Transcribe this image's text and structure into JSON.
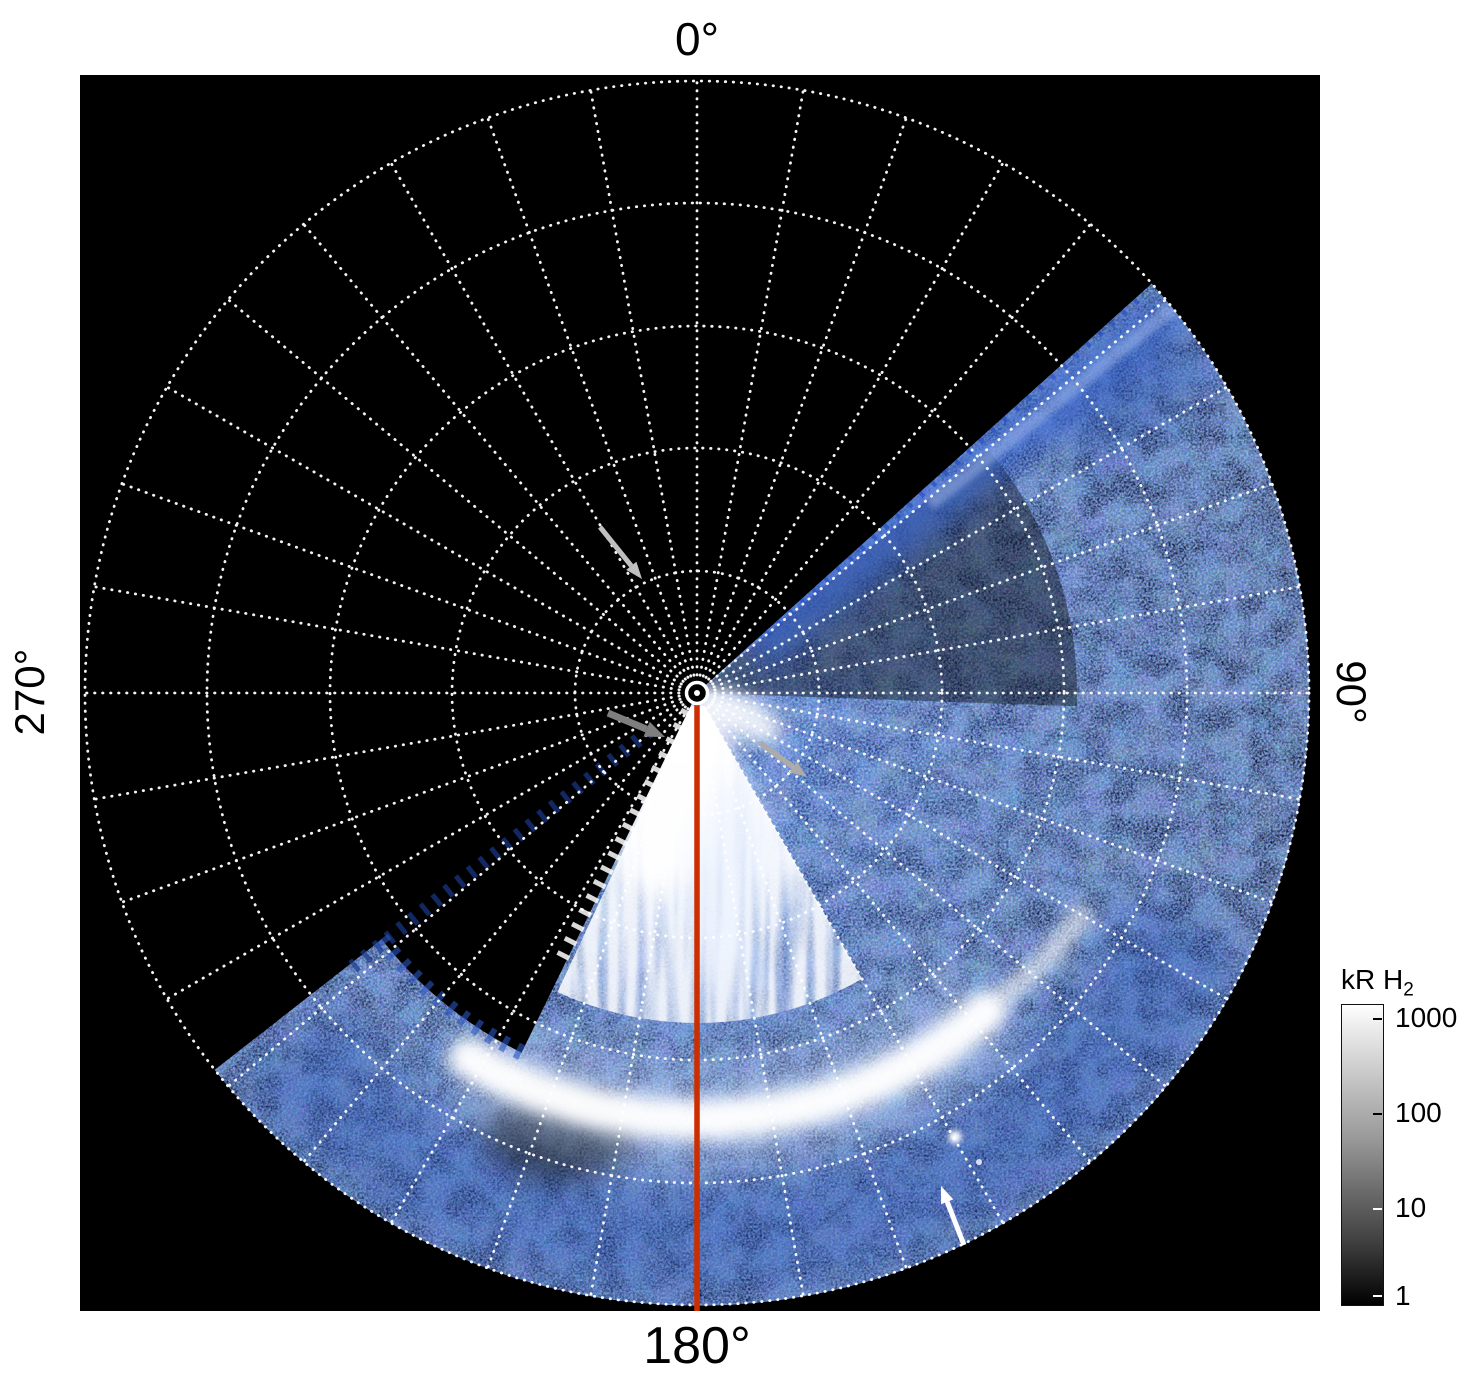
{
  "figure": {
    "page_background": "#ffffff",
    "plot_background": "#000000",
    "grid_color": "#ffffff",
    "meridian_color": "#cc2e00",
    "angle_labels": {
      "top": "0°",
      "right": "90°",
      "bottom": "180°",
      "left": "270°"
    }
  },
  "colorbar": {
    "title": "kR H",
    "title_sub": "2",
    "ticks": [
      "1000",
      "100",
      "10",
      "1"
    ],
    "scale": "log",
    "top_color": "#ffffff",
    "bottom_color": "#000000"
  },
  "annotations": {
    "arrows": [
      {
        "id": "arrow-upper-left",
        "color": "#c0c0c0",
        "direction": "down-right",
        "target": "second ring near 350° longitude"
      },
      {
        "id": "arrow-left-of-pole",
        "color": "#7f7f7f",
        "direction": "right",
        "target": "pole at start of 180° meridian"
      },
      {
        "id": "arrow-right-of-pole",
        "color": "#ababab",
        "direction": "down-right",
        "target": "bright polar emission southeast of pole"
      },
      {
        "id": "arrow-lower-right",
        "color": "#ffffff",
        "direction": "up-left",
        "target": "small bright spot near outer ring at ~150° longitude"
      }
    ]
  },
  "chart_data": {
    "type": "heatmap",
    "projection": "polar",
    "title": "",
    "units": "kR H2",
    "angle_tick_labels": [
      "0°",
      "90°",
      "180°",
      "270°"
    ],
    "angular_gridline_step_deg": 10,
    "radial_gridline_count": 5,
    "meridian_line_deg": 180,
    "colorbar": {
      "label": "kR H2",
      "scale": "log",
      "ticks": [
        1000,
        100,
        10,
        1
      ]
    },
    "grid": {
      "center": [
        617,
        618
      ],
      "ring_radii": [
        122,
        245,
        367,
        490,
        612
      ],
      "angular_step_deg": 10,
      "inner_radius": 18
    },
    "regions": [
      {
        "name": "no-data sector",
        "longitude_deg": [
          232,
          48
        ],
        "brightness_kR": null,
        "appearance": "black, unobserved (top-left of disk)"
      },
      {
        "name": "diffuse emission",
        "longitude_deg": [
          48,
          232
        ],
        "brightness_kR": "1-10",
        "appearance": "dark-blue speckle filling observed sector"
      },
      {
        "name": "main auroral arc",
        "longitude_deg": [
          135,
          215
        ],
        "radial_position": "between 3rd and 4th ring",
        "brightness_kR": "100-1000",
        "appearance": "bright white arc"
      },
      {
        "name": "polar streaks",
        "longitude_deg": [
          150,
          206
        ],
        "radial_position": "pole out to ~3rd ring",
        "brightness_kR": "100-1000",
        "appearance": "white radial streaks fanning from pole"
      },
      {
        "name": "northeast band",
        "longitude_deg": [
          46,
          56
        ],
        "radial_position": "pole to outer ring",
        "brightness_kR": "10-100",
        "appearance": "diagonal blue band toward upper right"
      },
      {
        "name": "inner dark wedge",
        "longitude_deg": [
          206,
          233
        ],
        "radial_position": "pole to ~2/3 of 4th ring",
        "brightness_kR": null,
        "appearance": "black jagged wedge (no data)"
      },
      {
        "name": "bright spot",
        "longitude_deg": [
          150
        ],
        "radial_position": "near 4th ring",
        "brightness_kR": "~100",
        "appearance": "point source marked by white arrow"
      }
    ]
  }
}
